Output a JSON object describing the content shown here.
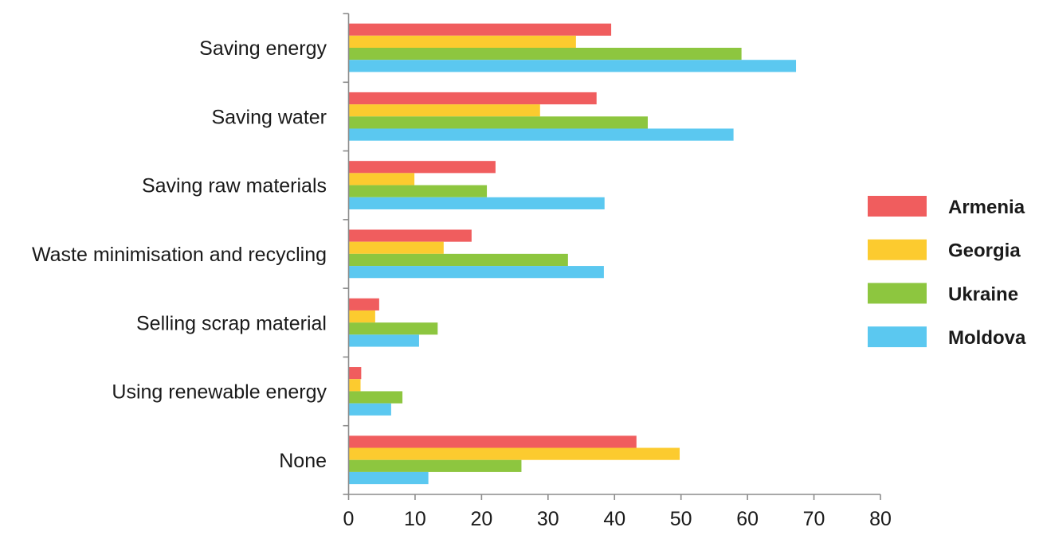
{
  "chart_data": {
    "type": "bar",
    "orientation": "horizontal",
    "categories": [
      "Saving energy",
      "Saving water",
      "Saving raw materials",
      "Waste minimisation and recycling",
      "Selling scrap material",
      "Using renewable energy",
      "None"
    ],
    "series": [
      {
        "name": "Armenia",
        "color": "#f05d5e",
        "values": [
          39.5,
          37.3,
          22.1,
          18.5,
          4.6,
          1.9,
          43.3
        ]
      },
      {
        "name": "Georgia",
        "color": "#fccb2f",
        "values": [
          34.2,
          28.8,
          9.9,
          14.3,
          4.0,
          1.8,
          49.8
        ]
      },
      {
        "name": "Ukraine",
        "color": "#8dc63f",
        "values": [
          59.1,
          45.0,
          20.8,
          33.0,
          13.4,
          8.1,
          26.0
        ]
      },
      {
        "name": "Moldova",
        "color": "#5bc8f0",
        "values": [
          67.3,
          57.9,
          38.5,
          38.4,
          10.6,
          6.4,
          12.0
        ]
      }
    ],
    "xlim": [
      0,
      80
    ],
    "x_ticks": [
      "0",
      "10",
      "20",
      "30",
      "40",
      "50",
      "60",
      "70",
      "80"
    ],
    "title": "",
    "xlabel": "",
    "ylabel": "",
    "legend_position": "right",
    "grid": false
  }
}
